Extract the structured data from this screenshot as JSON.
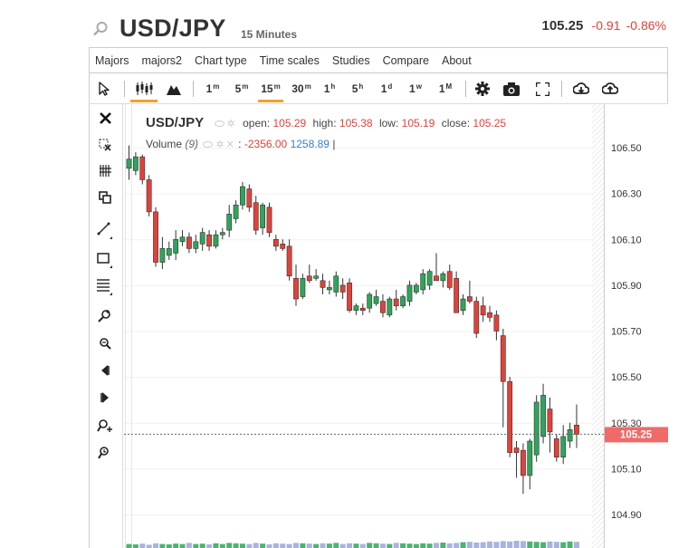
{
  "header": {
    "symbol": "USD/JPY",
    "timeframe": "15 Minutes",
    "price": "105.25",
    "change": "-0.91",
    "change_pct": "-0.86%"
  },
  "menu": [
    "Majors",
    "majors2",
    "Chart type",
    "Time scales",
    "Studies",
    "Compare",
    "About"
  ],
  "toolbar": {
    "timeframes": [
      {
        "base": "1",
        "sup": "m"
      },
      {
        "base": "5",
        "sup": "m"
      },
      {
        "base": "15",
        "sup": "m"
      },
      {
        "base": "30",
        "sup": "m"
      },
      {
        "base": "1",
        "sup": "h"
      },
      {
        "base": "5",
        "sup": "h"
      },
      {
        "base": "1",
        "sup": "d"
      },
      {
        "base": "1",
        "sup": "w"
      },
      {
        "base": "1",
        "sup": "M"
      }
    ],
    "active_timeframe": "15m",
    "active_chart_type": "candlestick"
  },
  "sidebar_tools": [
    "close-icon",
    "remove-drawings-icon",
    "crosshair-icon",
    "copy-icon",
    "trendline-icon",
    "rectangle-icon",
    "fibonacci-icon",
    "zoom-in-icon",
    "zoom-out-icon",
    "scroll-left-icon",
    "scroll-right-icon",
    "zoom-plus-icon",
    "zoom-reset-icon"
  ],
  "legend": {
    "symbol": "USD/JPY",
    "open_label": "open:",
    "open": "105.29",
    "high_label": "high:",
    "high": "105.38",
    "low_label": "low:",
    "low": "105.19",
    "close_label": "close:",
    "close": "105.25"
  },
  "volume_legend": {
    "label": "Volume",
    "period": "(9)",
    "sep": ":",
    "value1": "-2356.00",
    "value2": "1258.89",
    "cursor": "|"
  },
  "colors": {
    "up": "#2ea55a",
    "down": "#e0423a",
    "accent": "#f0a030",
    "price_tag": "#f06a6a"
  },
  "chart_data": {
    "type": "candlestick",
    "title": "USD/JPY",
    "ylim": [
      104.85,
      106.6
    ],
    "y_ticks": [
      "106.50",
      "106.30",
      "106.10",
      "105.90",
      "105.70",
      "105.50",
      "105.30",
      "105.10",
      "104.90"
    ],
    "current_price": "105.25",
    "candles": [
      {
        "o": 106.41,
        "h": 106.51,
        "l": 106.36,
        "c": 106.45
      },
      {
        "o": 106.4,
        "h": 106.48,
        "l": 106.38,
        "c": 106.46
      },
      {
        "o": 106.46,
        "h": 106.47,
        "l": 106.34,
        "c": 106.36
      },
      {
        "o": 106.36,
        "h": 106.38,
        "l": 106.2,
        "c": 106.22
      },
      {
        "o": 106.22,
        "h": 106.24,
        "l": 105.98,
        "c": 106.0
      },
      {
        "o": 106.0,
        "h": 106.11,
        "l": 105.97,
        "c": 106.06
      },
      {
        "o": 106.03,
        "h": 106.09,
        "l": 106.01,
        "c": 106.06
      },
      {
        "o": 106.04,
        "h": 106.14,
        "l": 106.01,
        "c": 106.1
      },
      {
        "o": 106.09,
        "h": 106.14,
        "l": 106.07,
        "c": 106.11
      },
      {
        "o": 106.11,
        "h": 106.13,
        "l": 106.04,
        "c": 106.06
      },
      {
        "o": 106.06,
        "h": 106.12,
        "l": 106.04,
        "c": 106.09
      },
      {
        "o": 106.08,
        "h": 106.15,
        "l": 106.05,
        "c": 106.13
      },
      {
        "o": 106.12,
        "h": 106.14,
        "l": 106.05,
        "c": 106.07
      },
      {
        "o": 106.07,
        "h": 106.14,
        "l": 106.06,
        "c": 106.12
      },
      {
        "o": 106.12,
        "h": 106.15,
        "l": 106.1,
        "c": 106.13
      },
      {
        "o": 106.14,
        "h": 106.25,
        "l": 106.11,
        "c": 106.21
      },
      {
        "o": 106.19,
        "h": 106.27,
        "l": 106.17,
        "c": 106.25
      },
      {
        "o": 106.25,
        "h": 106.35,
        "l": 106.23,
        "c": 106.33
      },
      {
        "o": 106.32,
        "h": 106.34,
        "l": 106.22,
        "c": 106.24
      },
      {
        "o": 106.26,
        "h": 106.29,
        "l": 106.12,
        "c": 106.14
      },
      {
        "o": 106.15,
        "h": 106.26,
        "l": 106.12,
        "c": 106.25
      },
      {
        "o": 106.24,
        "h": 106.26,
        "l": 106.11,
        "c": 106.13
      },
      {
        "o": 106.1,
        "h": 106.12,
        "l": 106.05,
        "c": 106.07
      },
      {
        "o": 106.08,
        "h": 106.1,
        "l": 106.05,
        "c": 106.06
      },
      {
        "o": 106.07,
        "h": 106.1,
        "l": 105.92,
        "c": 105.94
      },
      {
        "o": 105.93,
        "h": 105.99,
        "l": 105.81,
        "c": 105.84
      },
      {
        "o": 105.85,
        "h": 105.95,
        "l": 105.84,
        "c": 105.93
      },
      {
        "o": 105.94,
        "h": 105.99,
        "l": 105.91,
        "c": 105.92
      },
      {
        "o": 105.93,
        "h": 105.97,
        "l": 105.92,
        "c": 105.94
      },
      {
        "o": 105.92,
        "h": 105.95,
        "l": 105.86,
        "c": 105.89
      },
      {
        "o": 105.88,
        "h": 105.92,
        "l": 105.86,
        "c": 105.89
      },
      {
        "o": 105.87,
        "h": 105.96,
        "l": 105.85,
        "c": 105.94
      },
      {
        "o": 105.9,
        "h": 105.93,
        "l": 105.84,
        "c": 105.87
      },
      {
        "o": 105.91,
        "h": 105.93,
        "l": 105.78,
        "c": 105.79
      },
      {
        "o": 105.79,
        "h": 105.82,
        "l": 105.77,
        "c": 105.81
      },
      {
        "o": 105.8,
        "h": 105.82,
        "l": 105.77,
        "c": 105.79
      },
      {
        "o": 105.8,
        "h": 105.87,
        "l": 105.78,
        "c": 105.86
      },
      {
        "o": 105.82,
        "h": 105.88,
        "l": 105.81,
        "c": 105.85
      },
      {
        "o": 105.83,
        "h": 105.86,
        "l": 105.76,
        "c": 105.78
      },
      {
        "o": 105.77,
        "h": 105.85,
        "l": 105.76,
        "c": 105.84
      },
      {
        "o": 105.84,
        "h": 105.88,
        "l": 105.79,
        "c": 105.81
      },
      {
        "o": 105.81,
        "h": 105.86,
        "l": 105.8,
        "c": 105.85
      },
      {
        "o": 105.83,
        "h": 105.92,
        "l": 105.81,
        "c": 105.9
      },
      {
        "o": 105.87,
        "h": 105.91,
        "l": 105.86,
        "c": 105.9
      },
      {
        "o": 105.88,
        "h": 105.97,
        "l": 105.86,
        "c": 105.95
      },
      {
        "o": 105.9,
        "h": 105.97,
        "l": 105.88,
        "c": 105.96
      },
      {
        "o": 105.94,
        "h": 106.04,
        "l": 105.92,
        "c": 105.92
      },
      {
        "o": 105.92,
        "h": 105.96,
        "l": 105.89,
        "c": 105.95
      },
      {
        "o": 105.96,
        "h": 105.99,
        "l": 105.88,
        "c": 105.89
      },
      {
        "o": 105.93,
        "h": 105.96,
        "l": 105.78,
        "c": 105.78
      },
      {
        "o": 105.79,
        "h": 105.86,
        "l": 105.77,
        "c": 105.84
      },
      {
        "o": 105.85,
        "h": 105.92,
        "l": 105.82,
        "c": 105.83
      },
      {
        "o": 105.83,
        "h": 105.85,
        "l": 105.67,
        "c": 105.69
      },
      {
        "o": 105.81,
        "h": 105.85,
        "l": 105.74,
        "c": 105.77
      },
      {
        "o": 105.78,
        "h": 105.81,
        "l": 105.74,
        "c": 105.76
      },
      {
        "o": 105.77,
        "h": 105.79,
        "l": 105.66,
        "c": 105.7
      },
      {
        "o": 105.68,
        "h": 105.71,
        "l": 105.28,
        "c": 105.48
      },
      {
        "o": 105.48,
        "h": 105.5,
        "l": 105.15,
        "c": 105.17
      },
      {
        "o": 105.19,
        "h": 105.22,
        "l": 105.06,
        "c": 105.17
      },
      {
        "o": 105.18,
        "h": 105.21,
        "l": 104.99,
        "c": 105.07
      },
      {
        "o": 105.07,
        "h": 105.23,
        "l": 105.01,
        "c": 105.22
      },
      {
        "o": 105.16,
        "h": 105.42,
        "l": 105.13,
        "c": 105.39
      },
      {
        "o": 105.24,
        "h": 105.47,
        "l": 105.21,
        "c": 105.42
      },
      {
        "o": 105.36,
        "h": 105.41,
        "l": 105.17,
        "c": 105.26
      },
      {
        "o": 105.23,
        "h": 105.25,
        "l": 105.13,
        "c": 105.15
      },
      {
        "o": 105.15,
        "h": 105.29,
        "l": 105.12,
        "c": 105.24
      },
      {
        "o": 105.22,
        "h": 105.3,
        "l": 105.19,
        "c": 105.27
      },
      {
        "o": 105.29,
        "h": 105.38,
        "l": 105.19,
        "c": 105.25
      }
    ],
    "volume_up": [
      2.2,
      2.0,
      2.4,
      1.8,
      2.6,
      2.2,
      2.0,
      2.4,
      2.2,
      2.8,
      2.2,
      2.4,
      2.0,
      2.6,
      2.2,
      2.8,
      2.6,
      2.4,
      2.2,
      2.8,
      2.4,
      2.0,
      2.6,
      2.4,
      2.2,
      2.8,
      2.6,
      2.4,
      2.2,
      2.6,
      2.4,
      2.8,
      2.2,
      2.6,
      2.4,
      2.2,
      2.8,
      2.6,
      2.4,
      2.2,
      2.8,
      2.6,
      2.4,
      2.2,
      2.6,
      2.4,
      2.8,
      3.0,
      2.6,
      2.8,
      3.2,
      3.4,
      3.0,
      3.2,
      3.6,
      3.4,
      3.8,
      3.6,
      4.0,
      3.8,
      3.6,
      3.4,
      3.2,
      3.6,
      3.4,
      3.2,
      3.6,
      3.4
    ]
  }
}
